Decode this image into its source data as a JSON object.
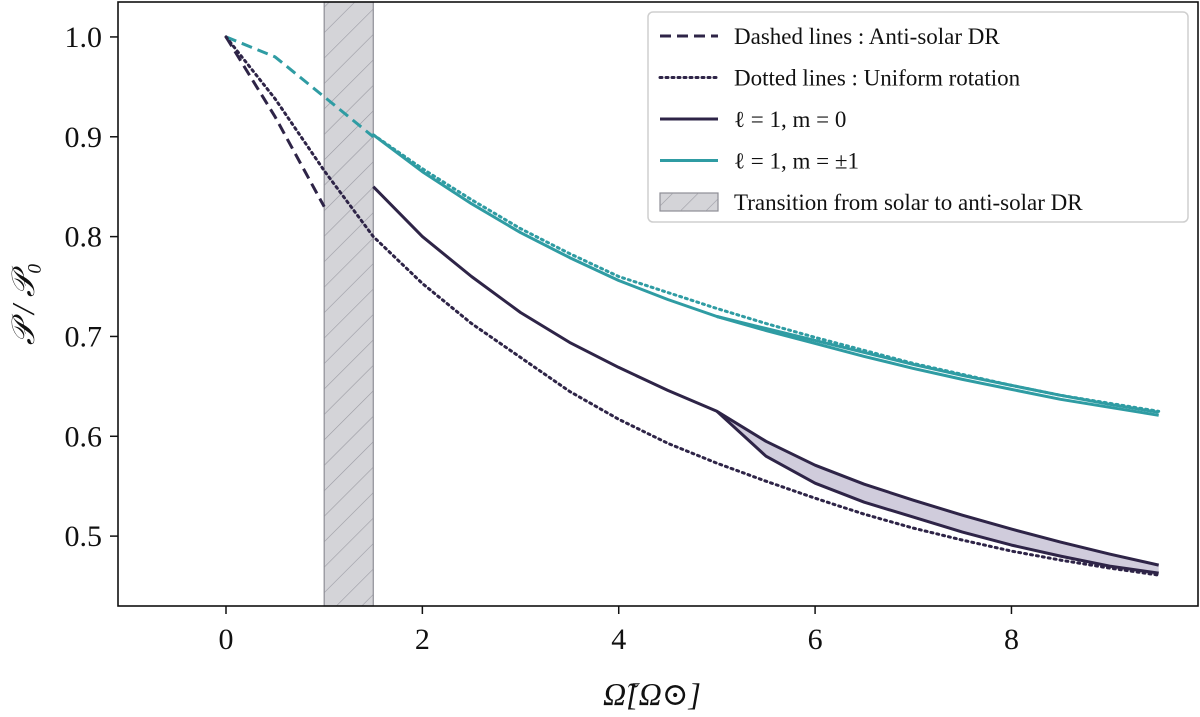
{
  "chart_data": {
    "type": "line",
    "title": "",
    "xlabel": "Ω̃[Ω⊙]",
    "ylabel": "𝒫 / 𝒫₀",
    "xlim": [
      -1.1,
      9.9
    ],
    "ylim": [
      0.43,
      1.035
    ],
    "xticks": [
      0,
      2,
      4,
      6,
      8
    ],
    "yticks": [
      0.5,
      0.6,
      0.7,
      0.8,
      0.9,
      1.0
    ],
    "xtick_labels": [
      "0",
      "2",
      "4",
      "6",
      "8"
    ],
    "ytick_labels": [
      "0.5",
      "0.6",
      "0.7",
      "0.8",
      "0.9",
      "1.0"
    ],
    "grid": false,
    "colors": {
      "m0": "#2e2447",
      "m1": "#2f9ca3",
      "band": "#d4d4d8",
      "fill_m0": "#c8c3d6"
    },
    "shaded_region": {
      "x": [
        1.0,
        1.5
      ],
      "label": "Transition from solar to anti-solar DR"
    },
    "series": [
      {
        "name": "m0_antisolar_dashed",
        "style": "dashed",
        "color_key": "m0",
        "x": [
          0,
          0.5,
          1.0
        ],
        "y": [
          1.0,
          0.92,
          0.83
        ]
      },
      {
        "name": "m1_antisolar_dashed",
        "style": "dashed",
        "color_key": "m1",
        "x": [
          0,
          0.5,
          1.0,
          1.5
        ],
        "y": [
          1.0,
          0.98,
          0.94,
          0.9
        ]
      },
      {
        "name": "m0_uniform_dotted",
        "style": "dotted",
        "color_key": "m0",
        "x": [
          0,
          0.5,
          1.0,
          1.5,
          2,
          2.5,
          3,
          3.5,
          4,
          4.5,
          5,
          5.5,
          6,
          6.5,
          7,
          7.5,
          8,
          8.5,
          9,
          9.5
        ],
        "y": [
          1.0,
          0.938,
          0.866,
          0.8,
          0.753,
          0.713,
          0.679,
          0.645,
          0.617,
          0.593,
          0.573,
          0.555,
          0.538,
          0.522,
          0.508,
          0.496,
          0.485,
          0.476,
          0.468,
          0.461
        ]
      },
      {
        "name": "m1_uniform_dotted",
        "style": "dotted",
        "color_key": "m1",
        "x": [
          1.5,
          2,
          2.5,
          3,
          3.5,
          4,
          4.5,
          5,
          5.5,
          6,
          6.5,
          7,
          7.5,
          8,
          8.5,
          9,
          9.5
        ],
        "y": [
          0.902,
          0.868,
          0.837,
          0.808,
          0.783,
          0.76,
          0.744,
          0.728,
          0.713,
          0.699,
          0.686,
          0.673,
          0.662,
          0.651,
          0.641,
          0.633,
          0.625
        ]
      },
      {
        "name": "ℓ = 1, m = 0 (upper)",
        "style": "solid",
        "color_key": "m0",
        "x": [
          1.5,
          2,
          2.5,
          3,
          3.5,
          4,
          4.5,
          5,
          5.5,
          6,
          6.5,
          7,
          7.5,
          8,
          8.5,
          9,
          9.5
        ],
        "y": [
          0.85,
          0.8,
          0.76,
          0.724,
          0.694,
          0.669,
          0.646,
          0.625,
          0.595,
          0.571,
          0.552,
          0.536,
          0.521,
          0.507,
          0.494,
          0.482,
          0.471
        ]
      },
      {
        "name": "ℓ = 1, m = 0 (lower)",
        "style": "solid",
        "color_key": "m0",
        "x": [
          5,
          5.5,
          6,
          6.5,
          7,
          7.5,
          8,
          8.5,
          9,
          9.5
        ],
        "y": [
          0.625,
          0.58,
          0.553,
          0.534,
          0.519,
          0.504,
          0.491,
          0.48,
          0.47,
          0.463
        ]
      },
      {
        "name": "ℓ = 1, m = ±1 (lower)",
        "style": "solid",
        "color_key": "m1",
        "x": [
          1.5,
          2,
          2.5,
          3,
          3.5,
          4,
          4.5,
          5,
          5.5,
          6,
          6.5,
          7,
          7.5,
          8,
          8.5,
          9,
          9.5
        ],
        "y": [
          0.902,
          0.865,
          0.833,
          0.804,
          0.779,
          0.756,
          0.737,
          0.72,
          0.706,
          0.693,
          0.68,
          0.668,
          0.657,
          0.647,
          0.637,
          0.629,
          0.621
        ]
      },
      {
        "name": "ℓ = 1, m = ±1 (upper)",
        "style": "solid",
        "color_key": "m1",
        "x": [
          5,
          5.5,
          6,
          6.5,
          7,
          7.5,
          8,
          8.5,
          9,
          9.5
        ],
        "y": [
          0.72,
          0.708,
          0.696,
          0.684,
          0.672,
          0.661,
          0.651,
          0.641,
          0.632,
          0.624
        ]
      }
    ],
    "filled_band": {
      "color_key": "fill_m0",
      "x": [
        5,
        5.5,
        6,
        6.5,
        7,
        7.5,
        8,
        8.5,
        9,
        9.5
      ],
      "upper": [
        0.625,
        0.595,
        0.571,
        0.552,
        0.536,
        0.521,
        0.507,
        0.494,
        0.482,
        0.471
      ],
      "lower": [
        0.625,
        0.58,
        0.553,
        0.534,
        0.519,
        0.504,
        0.491,
        0.48,
        0.47,
        0.463
      ]
    },
    "legend": {
      "position": "top-right",
      "entries": [
        {
          "label": "Dashed lines : Anti-solar DR",
          "style": "dashed",
          "color_key": "m0"
        },
        {
          "label": "Dotted lines : Uniform rotation",
          "style": "dotted",
          "color_key": "m0"
        },
        {
          "label": "ℓ = 1, m = 0",
          "style": "solid",
          "color_key": "m0"
        },
        {
          "label": "ℓ = 1, m = ±1",
          "style": "solid",
          "color_key": "m1"
        },
        {
          "label": "Transition from solar to anti-solar DR",
          "style": "patch",
          "color_key": "band"
        }
      ]
    }
  }
}
